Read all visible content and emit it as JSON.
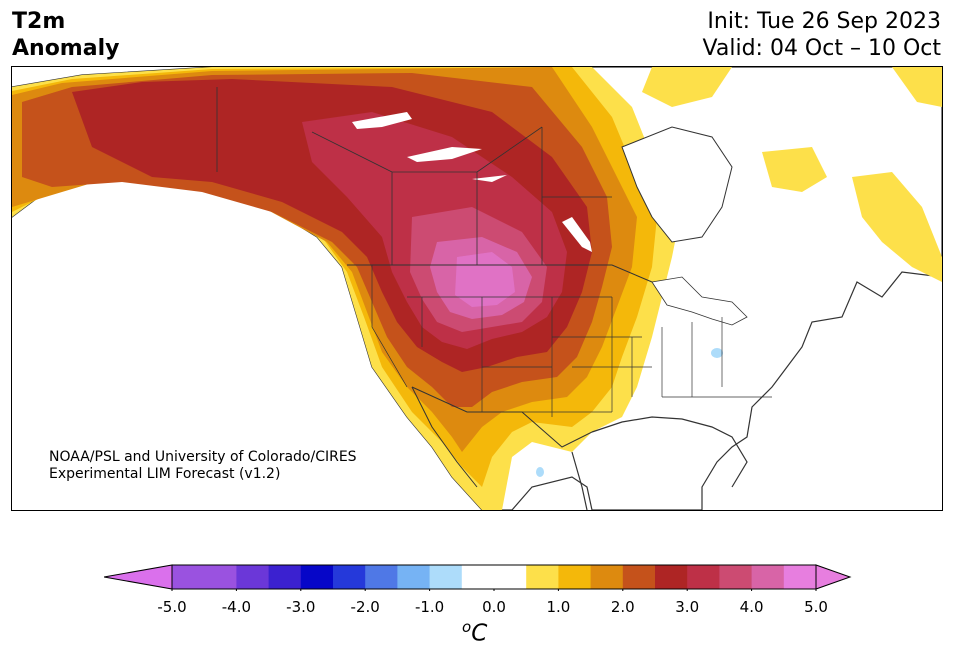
{
  "header": {
    "title_line1": "T2m",
    "title_line2": "Anomaly",
    "init": "Init: Tue 26 Sep 2023",
    "valid": "Valid: 04 Oct – 10 Oct"
  },
  "credit": {
    "line1": "NOAA/PSL and University of Colorado/CIRES",
    "line2": "Experimental LIM Forecast (v1.2)"
  },
  "colorbar": {
    "unit": "oC",
    "ticks": [
      "-5.0",
      "-4.0",
      "-3.0",
      "-2.0",
      "-1.0",
      "0.0",
      "1.0",
      "2.0",
      "3.0",
      "4.0",
      "5.0"
    ],
    "tick_values": [
      -5,
      -4,
      -3,
      -2,
      -1,
      0,
      1,
      2,
      3,
      4,
      5
    ],
    "range": [
      -5.5,
      5.5
    ],
    "bins": [
      {
        "from": -5.0,
        "to": -4.5,
        "color": "#9a52e0"
      },
      {
        "from": -4.5,
        "to": -4.0,
        "color": "#9a52e0"
      },
      {
        "from": -4.0,
        "to": -3.5,
        "color": "#6b37d8"
      },
      {
        "from": -3.5,
        "to": -3.0,
        "color": "#3b21d0"
      },
      {
        "from": -3.0,
        "to": -2.5,
        "color": "#0606c8"
      },
      {
        "from": -2.5,
        "to": -2.0,
        "color": "#2539da"
      },
      {
        "from": -2.0,
        "to": -1.5,
        "color": "#4f78e6"
      },
      {
        "from": -1.5,
        "to": -1.0,
        "color": "#76b3f4"
      },
      {
        "from": -1.0,
        "to": -0.5,
        "color": "#addcfa"
      },
      {
        "from": -0.5,
        "to": 0.5,
        "color": "#ffffff"
      },
      {
        "from": 0.5,
        "to": 1.0,
        "color": "#fde04a"
      },
      {
        "from": 1.0,
        "to": 1.5,
        "color": "#f4b80a"
      },
      {
        "from": 1.5,
        "to": 2.0,
        "color": "#dd8a0f"
      },
      {
        "from": 2.0,
        "to": 2.5,
        "color": "#c5521b"
      },
      {
        "from": 2.5,
        "to": 3.0,
        "color": "#ae2524"
      },
      {
        "from": 3.0,
        "to": 3.5,
        "color": "#be3047"
      },
      {
        "from": 3.5,
        "to": 4.0,
        "color": "#cc4b72"
      },
      {
        "from": 4.0,
        "to": 4.5,
        "color": "#d864a7"
      },
      {
        "from": 4.5,
        "to": 5.0,
        "color": "#e77edf"
      }
    ],
    "under_color": "#da70ec",
    "over_color": "#e77edf"
  },
  "map": {
    "region": "North America",
    "max_anomaly_region": "central Canada / northern US Plains",
    "colors": {
      "yellow": "#fde04a",
      "gold": "#f4b80a",
      "orange": "#dd8a0f",
      "burnt": "#c5521b",
      "red": "#ae2524",
      "crimson": "#be3047",
      "rose": "#cc4b72",
      "pink": "#d864a7",
      "magenta": "#e77edf",
      "light_blue": "#addcfa",
      "land_outline": "#333333",
      "water": "#ffffff"
    }
  }
}
